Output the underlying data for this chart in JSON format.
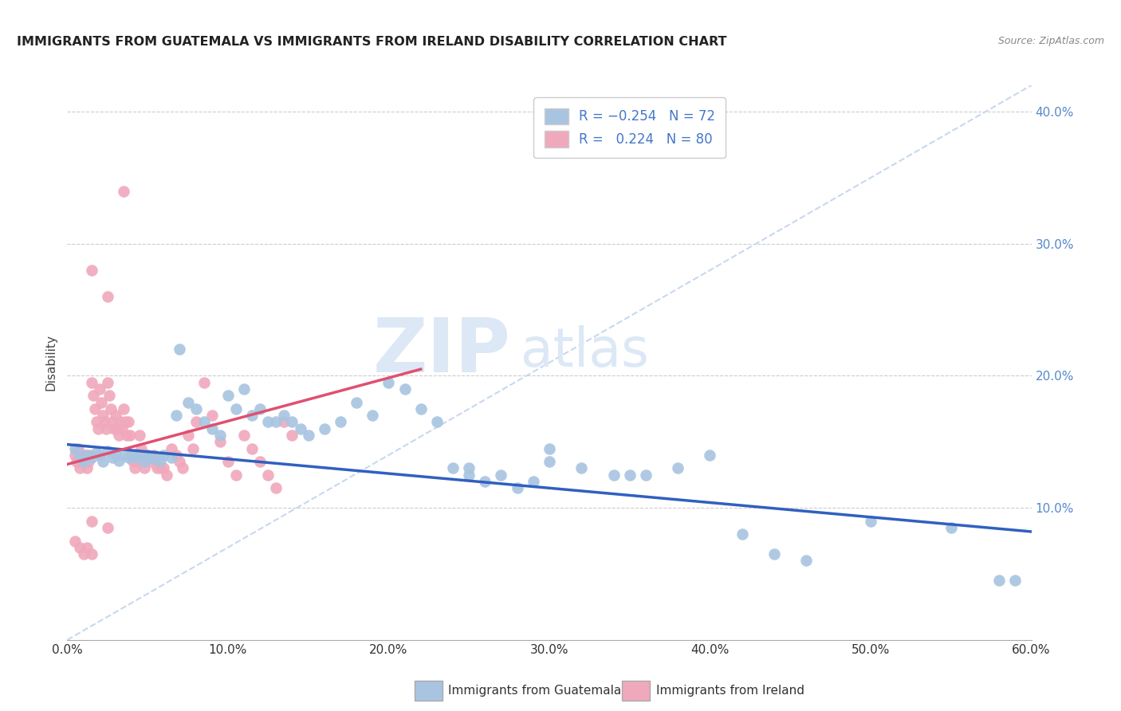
{
  "title": "IMMIGRANTS FROM GUATEMALA VS IMMIGRANTS FROM IRELAND DISABILITY CORRELATION CHART",
  "source": "Source: ZipAtlas.com",
  "ylabel": "Disability",
  "xlim": [
    0.0,
    0.6
  ],
  "ylim": [
    0.0,
    0.42
  ],
  "xtick_vals": [
    0.0,
    0.1,
    0.2,
    0.3,
    0.4,
    0.5,
    0.6
  ],
  "ytick_vals": [
    0.0,
    0.1,
    0.2,
    0.3,
    0.4
  ],
  "scatter_blue_color": "#a8c4e0",
  "scatter_pink_color": "#f0a8bc",
  "line_blue_color": "#3060c0",
  "line_pink_color": "#e05070",
  "trendline_dashed_color": "#c8d8f0",
  "watermark_zip": "ZIP",
  "watermark_atlas": "atlas",
  "blue_line_x": [
    0.0,
    0.6
  ],
  "blue_line_y": [
    0.148,
    0.082
  ],
  "pink_line_x": [
    0.0,
    0.22
  ],
  "pink_line_y": [
    0.133,
    0.205
  ],
  "dashed_line_x": [
    0.0,
    0.6
  ],
  "dashed_line_y": [
    0.0,
    0.42
  ],
  "blue_scatter_x": [
    0.005,
    0.008,
    0.01,
    0.012,
    0.015,
    0.018,
    0.02,
    0.022,
    0.025,
    0.028,
    0.03,
    0.032,
    0.035,
    0.038,
    0.04,
    0.042,
    0.045,
    0.048,
    0.05,
    0.052,
    0.055,
    0.058,
    0.06,
    0.065,
    0.068,
    0.07,
    0.075,
    0.08,
    0.085,
    0.09,
    0.095,
    0.1,
    0.105,
    0.11,
    0.115,
    0.12,
    0.125,
    0.13,
    0.135,
    0.14,
    0.145,
    0.15,
    0.16,
    0.17,
    0.18,
    0.19,
    0.2,
    0.21,
    0.22,
    0.23,
    0.24,
    0.25,
    0.26,
    0.27,
    0.28,
    0.29,
    0.3,
    0.32,
    0.34,
    0.36,
    0.38,
    0.4,
    0.42,
    0.44,
    0.46,
    0.5,
    0.55,
    0.58,
    0.59,
    0.3,
    0.35,
    0.25
  ],
  "blue_scatter_y": [
    0.145,
    0.14,
    0.135,
    0.14,
    0.138,
    0.142,
    0.14,
    0.135,
    0.143,
    0.138,
    0.14,
    0.136,
    0.14,
    0.138,
    0.14,
    0.138,
    0.14,
    0.135,
    0.14,
    0.138,
    0.137,
    0.136,
    0.14,
    0.138,
    0.17,
    0.22,
    0.18,
    0.175,
    0.165,
    0.16,
    0.155,
    0.185,
    0.175,
    0.19,
    0.17,
    0.175,
    0.165,
    0.165,
    0.17,
    0.165,
    0.16,
    0.155,
    0.16,
    0.165,
    0.18,
    0.17,
    0.195,
    0.19,
    0.175,
    0.165,
    0.13,
    0.125,
    0.12,
    0.125,
    0.115,
    0.12,
    0.135,
    0.13,
    0.125,
    0.125,
    0.13,
    0.14,
    0.08,
    0.065,
    0.06,
    0.09,
    0.085,
    0.045,
    0.045,
    0.145,
    0.125,
    0.13
  ],
  "pink_scatter_x": [
    0.005,
    0.006,
    0.007,
    0.008,
    0.009,
    0.01,
    0.011,
    0.012,
    0.013,
    0.014,
    0.015,
    0.016,
    0.017,
    0.018,
    0.019,
    0.02,
    0.021,
    0.022,
    0.023,
    0.024,
    0.025,
    0.026,
    0.027,
    0.028,
    0.029,
    0.03,
    0.031,
    0.032,
    0.033,
    0.034,
    0.035,
    0.036,
    0.037,
    0.038,
    0.039,
    0.04,
    0.041,
    0.042,
    0.043,
    0.044,
    0.045,
    0.046,
    0.047,
    0.048,
    0.05,
    0.052,
    0.054,
    0.056,
    0.058,
    0.06,
    0.062,
    0.065,
    0.068,
    0.07,
    0.072,
    0.075,
    0.078,
    0.08,
    0.085,
    0.09,
    0.095,
    0.1,
    0.105,
    0.11,
    0.115,
    0.12,
    0.125,
    0.13,
    0.135,
    0.14,
    0.015,
    0.025,
    0.035,
    0.015,
    0.025,
    0.005,
    0.008,
    0.01,
    0.012,
    0.015
  ],
  "pink_scatter_y": [
    0.14,
    0.135,
    0.145,
    0.13,
    0.14,
    0.135,
    0.14,
    0.13,
    0.135,
    0.14,
    0.195,
    0.185,
    0.175,
    0.165,
    0.16,
    0.19,
    0.18,
    0.17,
    0.165,
    0.16,
    0.195,
    0.185,
    0.175,
    0.165,
    0.16,
    0.17,
    0.16,
    0.155,
    0.165,
    0.16,
    0.175,
    0.165,
    0.155,
    0.165,
    0.155,
    0.14,
    0.135,
    0.13,
    0.14,
    0.135,
    0.155,
    0.145,
    0.135,
    0.13,
    0.14,
    0.135,
    0.14,
    0.13,
    0.13,
    0.13,
    0.125,
    0.145,
    0.14,
    0.135,
    0.13,
    0.155,
    0.145,
    0.165,
    0.195,
    0.17,
    0.15,
    0.135,
    0.125,
    0.155,
    0.145,
    0.135,
    0.125,
    0.115,
    0.165,
    0.155,
    0.28,
    0.26,
    0.34,
    0.09,
    0.085,
    0.075,
    0.07,
    0.065,
    0.07,
    0.065
  ]
}
